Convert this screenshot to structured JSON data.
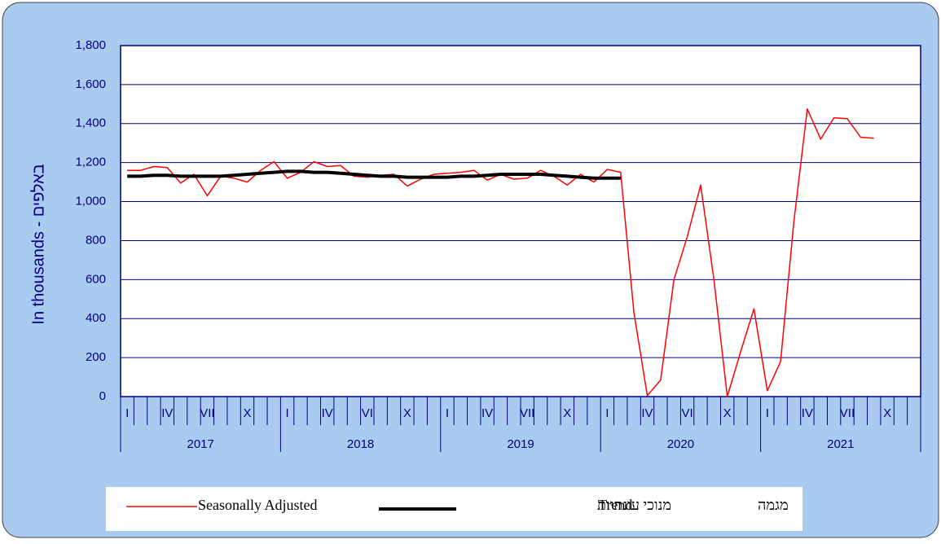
{
  "chart_data": {
    "type": "line",
    "y_label": "In thousands - באלפים",
    "categories": [
      "I",
      null,
      null,
      "IV",
      null,
      null,
      "VII",
      null,
      null,
      "X",
      null,
      null,
      "I",
      null,
      null,
      "IV",
      null,
      null,
      "VI",
      null,
      null,
      "X",
      null,
      null,
      "I",
      null,
      null,
      "IV",
      null,
      null,
      "VII",
      null,
      null,
      "X",
      null,
      null,
      "I",
      null,
      null,
      "IV",
      null,
      null,
      "VI",
      null,
      null,
      "X",
      null,
      null,
      "I",
      null,
      null,
      "IV",
      null,
      null,
      "VII",
      null,
      null,
      "X",
      null,
      null
    ],
    "years": [
      "2017",
      "2018",
      "2019",
      "2020",
      "2021"
    ],
    "series": [
      {
        "name": "Seasonally Adjusted",
        "color": "#ff0000",
        "values": [
          1160,
          1160,
          1180,
          1175,
          1095,
          1140,
          1030,
          1130,
          1120,
          1100,
          1160,
          1205,
          1120,
          1150,
          1205,
          1180,
          1185,
          1130,
          1125,
          1135,
          1140,
          1080,
          1115,
          1140,
          1145,
          1150,
          1160,
          1110,
          1140,
          1115,
          1120,
          1160,
          1130,
          1085,
          1140,
          1100,
          1165,
          1150,
          430,
          5,
          85,
          600,
          820,
          1085,
          600,
          0,
          230,
          450,
          30,
          180,
          900,
          1475,
          1320,
          1430,
          1425,
          1330,
          1325,
          null,
          null,
          null
        ]
      },
      {
        "name": "Trend",
        "color": "#000000",
        "values": [
          1130,
          1130,
          1135,
          1135,
          1130,
          1130,
          1130,
          1130,
          1135,
          1140,
          1145,
          1150,
          1155,
          1155,
          1150,
          1150,
          1145,
          1140,
          1135,
          1130,
          1130,
          1125,
          1125,
          1125,
          1125,
          1130,
          1130,
          1135,
          1140,
          1140,
          1140,
          1140,
          1135,
          1130,
          1125,
          1120,
          1120,
          1120,
          null,
          null,
          null,
          null,
          null,
          null,
          null,
          null,
          null,
          null,
          null,
          null,
          null,
          null,
          null,
          null,
          null,
          null,
          null,
          null,
          null,
          null
        ]
      }
    ],
    "legend_extra": [
      "מנוכי עונתיות",
      "מגמה"
    ],
    "ylim": [
      0,
      1800
    ],
    "yticks": [
      0,
      200,
      400,
      600,
      800,
      {
        "value": 1000,
        "label": "1,000"
      },
      {
        "value": 1200,
        "label": "1,200"
      },
      {
        "value": 1400,
        "label": "1,400"
      },
      {
        "value": 1600,
        "label": "1,600"
      },
      {
        "value": 1800,
        "label": "1,800"
      }
    ],
    "grid": true
  }
}
